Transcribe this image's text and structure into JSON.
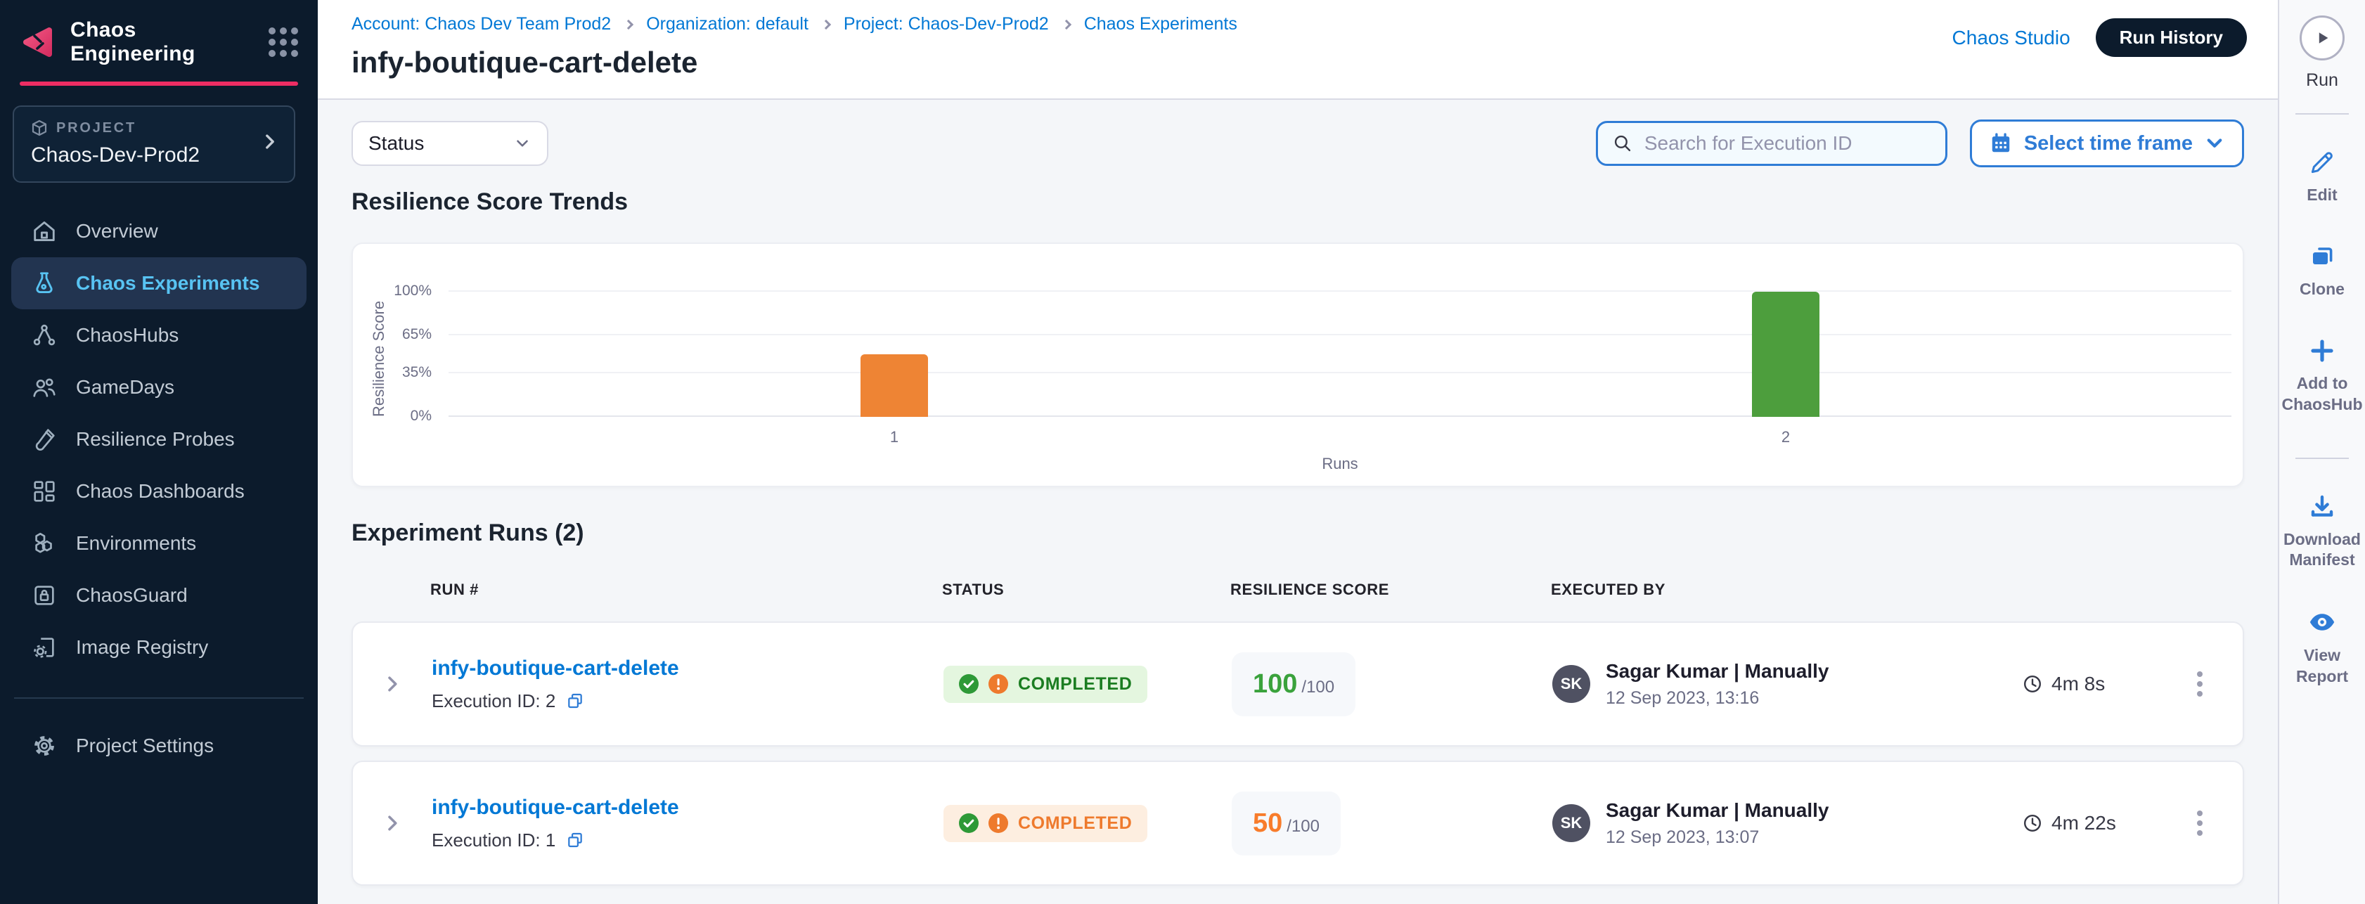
{
  "app": {
    "product_name": "Chaos Engineering"
  },
  "sidebar": {
    "project_label": "PROJECT",
    "project_name": "Chaos-Dev-Prod2",
    "items": [
      {
        "label": "Overview",
        "active": false
      },
      {
        "label": "Chaos Experiments",
        "active": true
      },
      {
        "label": "ChaosHubs",
        "active": false
      },
      {
        "label": "GameDays",
        "active": false
      },
      {
        "label": "Resilience Probes",
        "active": false
      },
      {
        "label": "Chaos Dashboards",
        "active": false
      },
      {
        "label": "Environments",
        "active": false
      },
      {
        "label": "ChaosGuard",
        "active": false
      },
      {
        "label": "Image Registry",
        "active": false
      }
    ],
    "settings_label": "Project Settings"
  },
  "header": {
    "breadcrumbs": [
      "Account: Chaos Dev Team Prod2",
      "Organization: default",
      "Project: Chaos-Dev-Prod2",
      "Chaos Experiments"
    ],
    "title": "infy-boutique-cart-delete",
    "chaos_studio_label": "Chaos Studio",
    "run_history_label": "Run History"
  },
  "toolbar": {
    "status_filter_label": "Status",
    "search_placeholder": "Search for Execution ID",
    "timeframe_label": "Select time frame"
  },
  "trends": {
    "title": "Resilience Score Trends"
  },
  "chart_data": {
    "type": "bar",
    "title": "Resilience Score Trends",
    "categories": [
      "1",
      "2"
    ],
    "values": [
      50,
      100
    ],
    "bar_colors": [
      "#EE8434",
      "#4D9E3D"
    ],
    "xlabel": "Runs",
    "ylabel": "Resilience Score",
    "ylim": [
      0,
      100
    ],
    "yticks": [
      0,
      35,
      65,
      100
    ],
    "ytick_labels": [
      "0%",
      "35%",
      "65%",
      "100%"
    ],
    "grid": true,
    "legend": false
  },
  "runs": {
    "title": "Experiment Runs (2)",
    "columns": [
      "RUN #",
      "STATUS",
      "RESILIENCE SCORE",
      "EXECUTED BY"
    ],
    "rows": [
      {
        "name": "infy-boutique-cart-delete",
        "execution_id_label": "Execution ID: 2",
        "status": "COMPLETED",
        "status_variant": "success",
        "score": "100",
        "score_total": "/100",
        "score_variant": "success",
        "avatar_initials": "SK",
        "executed_by": "Sagar Kumar | Manually",
        "executed_at": "12 Sep 2023, 13:16",
        "duration": "4m 8s"
      },
      {
        "name": "infy-boutique-cart-delete",
        "execution_id_label": "Execution ID: 1",
        "status": "COMPLETED",
        "status_variant": "warning",
        "score": "50",
        "score_total": "/100",
        "score_variant": "warning",
        "avatar_initials": "SK",
        "executed_by": "Sagar Kumar | Manually",
        "executed_at": "12 Sep 2023, 13:07",
        "duration": "4m 22s"
      }
    ]
  },
  "rail": {
    "run_label": "Run",
    "actions": [
      {
        "label": "Edit"
      },
      {
        "label": "Clone"
      },
      {
        "label": "Add to ChaosHub"
      },
      {
        "label": "Download Manifest"
      },
      {
        "label": "View Report"
      }
    ]
  },
  "colors": {
    "brand_pink": "#EE2D63",
    "link_blue": "#0278D5",
    "nav_dark": "#0C1B2C",
    "active_nav_text": "#58C3F2",
    "success_green": "#2E9937",
    "warning_orange": "#EE7A2D",
    "bar_orange": "#EE8434",
    "bar_green": "#4D9E3D"
  }
}
